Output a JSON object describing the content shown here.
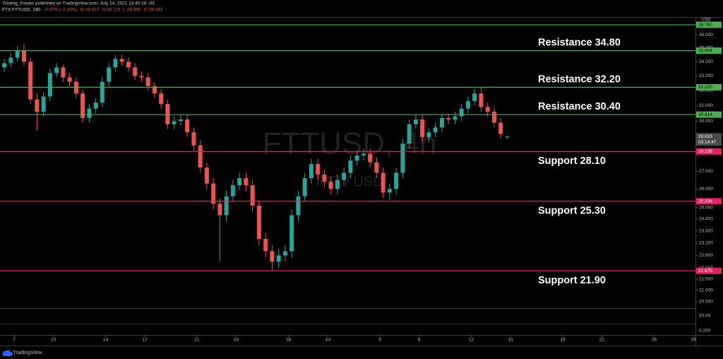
{
  "chart_data": {
    "type": "candlestick",
    "publisher": "Trading_Freaks published on TradingView.com, July 14, 2021 13:45:16 -03",
    "symbol": "FTX:FTTUSD, 240",
    "change": "−0.679 (−2.29%)",
    "ohlc_labels": [
      "O:29.017",
      "H:29.113",
      "L:28.890",
      "C:29.033"
    ],
    "watermark": "FTTUSD, 4h",
    "watermark_pair": "FTT / USD",
    "currency": "USD",
    "footer": "TradingView",
    "log_scale": true,
    "grid": false,
    "up_color": "#26a69a",
    "down_color": "#ef5350",
    "xlim": [
      6.08,
      59.16
    ],
    "xticks": [
      7,
      10,
      14,
      17,
      21,
      24,
      28,
      {
        "value": 31,
        "label": "Jul"
      },
      {
        "value": 35,
        "label": "5"
      },
      {
        "value": 38,
        "label": "8"
      },
      {
        "value": 42,
        "label": "12"
      },
      {
        "value": 45,
        "label": "15"
      },
      {
        "value": 49,
        "label": "19"
      },
      {
        "value": 52,
        "label": "22"
      },
      {
        "value": 56,
        "label": "26"
      },
      {
        "value": 59,
        "label": "29"
      }
    ],
    "ylim": [
      20.22,
      37.26
    ],
    "yticks": [
      {
        "value": 36,
        "label": "36.000"
      },
      {
        "value": 35,
        "label": "35.000"
      },
      {
        "value": 34,
        "label": "34.000"
      },
      {
        "value": 33,
        "label": "33.000"
      },
      {
        "value": 32,
        "label": "32.000"
      },
      {
        "value": 31,
        "label": "31.000"
      },
      {
        "value": 30,
        "label": "30.000"
      },
      {
        "value": 27,
        "label": "27.000"
      },
      {
        "value": 26,
        "label": "26.000"
      },
      {
        "value": 25,
        "label": "25.000"
      },
      {
        "value": 24.4,
        "label": "24.400"
      },
      {
        "value": 23.8,
        "label": "23.800"
      },
      {
        "value": 23.2,
        "label": "23.200"
      },
      {
        "value": 22.6,
        "label": "22.600"
      },
      {
        "value": 22,
        "label": "22.000"
      },
      {
        "value": 21.5,
        "label": "21.500"
      },
      {
        "value": 21,
        "label": "21.000"
      },
      {
        "value": 20.5,
        "label": "20.500"
      }
    ],
    "lower_pane_labels": [
      "50.00",
      "0.200"
    ],
    "levels": [
      {
        "value": 36.76,
        "label": "36.760",
        "color": "#4caf50"
      },
      {
        "value": 34.804,
        "label": "34.804",
        "color": "#4caf50",
        "text": "Resistance 34.80"
      },
      {
        "value": 32.22,
        "label": "32.220",
        "color": "#4caf50",
        "text": "Resistance 32.20"
      },
      {
        "value": 30.414,
        "label": "30.414",
        "color": "#4caf50",
        "text": "Resistance 30.40"
      },
      {
        "value": 28.135,
        "label": "28.135",
        "color": "#e91e63",
        "text": "Support 28.10"
      },
      {
        "value": 25.334,
        "label": "25.334",
        "color": "#e91e63",
        "text": "Support 25.30"
      },
      {
        "value": 21.875,
        "label": "21.875",
        "color": "#e91e63",
        "text": "Support 21.90"
      }
    ],
    "current_price": {
      "value": 29.033,
      "countdown": "03:14:47"
    },
    "x": [
      6.25,
      6.75,
      7.25,
      7.75,
      8.25,
      8.75,
      9.25,
      9.75,
      10.25,
      10.75,
      11.25,
      11.75,
      12.25,
      12.75,
      13.25,
      13.75,
      14.25,
      14.75,
      15.25,
      15.75,
      16.25,
      16.75,
      17.25,
      17.75,
      18.25,
      18.75,
      19.25,
      19.75,
      20.25,
      20.75,
      21.25,
      21.75,
      22.25,
      22.75,
      23.25,
      23.75,
      24.25,
      24.75,
      25.25,
      25.75,
      26.25,
      26.75,
      27.25,
      27.75,
      28.25,
      28.75,
      29.25,
      29.75,
      30.25,
      30.75,
      31.25,
      31.75,
      32.25,
      32.75,
      33.25,
      33.75,
      34.25,
      34.75,
      35.25,
      35.75,
      36.25,
      36.75,
      37.25,
      37.75,
      38.25,
      38.75,
      39.25,
      39.75,
      40.25,
      40.75,
      41.25,
      41.75,
      42.25,
      42.75,
      43.25,
      43.75,
      44.25,
      44.75
    ],
    "open": [
      33.6,
      33.9,
      34.3,
      34.8,
      34.0,
      31.4,
      30.6,
      31.6,
      33.2,
      33.6,
      32.9,
      32.6,
      31.8,
      30.2,
      30.8,
      31.2,
      32.6,
      33.6,
      34.2,
      34.0,
      33.6,
      33.0,
      32.9,
      32.3,
      31.8,
      31.1,
      29.8,
      30.0,
      30.1,
      29.3,
      28.5,
      27.2,
      26.3,
      25.2,
      24.6,
      25.6,
      26.2,
      26.6,
      26.2,
      25.1,
      23.4,
      22.8,
      22.3,
      22.6,
      22.8,
      24.6,
      25.6,
      26.6,
      27.4,
      26.8,
      26.4,
      26.0,
      26.5,
      26.9,
      27.6,
      27.9,
      28.0,
      27.5,
      26.9,
      25.8,
      26.0,
      26.9,
      28.6,
      29.8,
      30.1,
      29.0,
      29.3,
      29.6,
      30.2,
      30.1,
      30.3,
      30.8,
      31.3,
      31.8,
      30.9,
      30.6,
      29.9,
      29.017
    ],
    "high": [
      34.2,
      34.6,
      35.1,
      35.3,
      34.3,
      31.8,
      31.9,
      33.5,
      33.9,
      33.8,
      33.2,
      32.9,
      32.1,
      31.1,
      31.5,
      32.9,
      33.9,
      34.5,
      34.5,
      34.3,
      33.9,
      33.3,
      33.2,
      32.6,
      32.1,
      31.4,
      30.3,
      30.4,
      30.4,
      29.6,
      28.8,
      27.5,
      26.6,
      25.5,
      25.9,
      26.5,
      26.9,
      26.9,
      26.5,
      25.4,
      23.7,
      23.1,
      22.9,
      23.1,
      24.9,
      25.9,
      26.9,
      27.7,
      27.7,
      27.1,
      26.7,
      26.8,
      27.2,
      27.9,
      28.2,
      28.3,
      28.3,
      27.8,
      27.2,
      26.3,
      27.2,
      28.9,
      30.1,
      30.4,
      30.4,
      29.6,
      29.9,
      30.5,
      30.5,
      30.6,
      31.1,
      31.6,
      32.1,
      32.2,
      31.2,
      30.9,
      30.2,
      29.113
    ],
    "low": [
      33.3,
      33.6,
      34.0,
      33.7,
      31.1,
      29.4,
      30.3,
      31.3,
      32.9,
      32.6,
      32.3,
      31.5,
      29.9,
      29.9,
      30.5,
      30.9,
      32.3,
      33.3,
      33.7,
      33.3,
      32.7,
      32.6,
      32.0,
      31.5,
      30.8,
      29.5,
      29.5,
      29.7,
      29.0,
      28.2,
      26.9,
      26.0,
      24.9,
      22.3,
      24.3,
      25.3,
      25.9,
      25.9,
      24.8,
      23.1,
      22.5,
      21.9,
      22.0,
      22.3,
      22.5,
      24.3,
      25.3,
      26.3,
      26.5,
      26.1,
      25.7,
      25.7,
      26.2,
      26.6,
      27.3,
      27.6,
      27.2,
      26.6,
      25.5,
      25.4,
      25.7,
      26.6,
      28.3,
      29.5,
      28.7,
      28.7,
      29.0,
      29.3,
      29.8,
      29.8,
      30.0,
      30.5,
      31.0,
      30.6,
      30.3,
      29.6,
      28.9,
      28.89
    ],
    "close": [
      33.9,
      34.3,
      34.8,
      34.0,
      31.4,
      30.6,
      31.6,
      33.2,
      33.6,
      32.9,
      32.6,
      31.8,
      30.2,
      30.8,
      31.2,
      32.6,
      33.6,
      34.2,
      34.0,
      33.6,
      33.0,
      32.9,
      32.3,
      31.8,
      31.1,
      29.8,
      30.0,
      30.1,
      29.3,
      28.5,
      27.2,
      26.3,
      25.2,
      24.6,
      25.6,
      26.2,
      26.6,
      26.2,
      25.1,
      23.4,
      22.8,
      22.3,
      22.6,
      22.8,
      24.6,
      25.6,
      26.6,
      27.4,
      26.8,
      26.4,
      26.0,
      26.5,
      26.9,
      27.6,
      27.9,
      28.0,
      27.5,
      26.9,
      25.8,
      26.0,
      26.9,
      28.6,
      29.8,
      30.1,
      29.0,
      29.3,
      29.6,
      30.2,
      30.1,
      30.3,
      30.8,
      31.3,
      31.8,
      30.9,
      30.6,
      29.9,
      29.2,
      29.033
    ]
  }
}
